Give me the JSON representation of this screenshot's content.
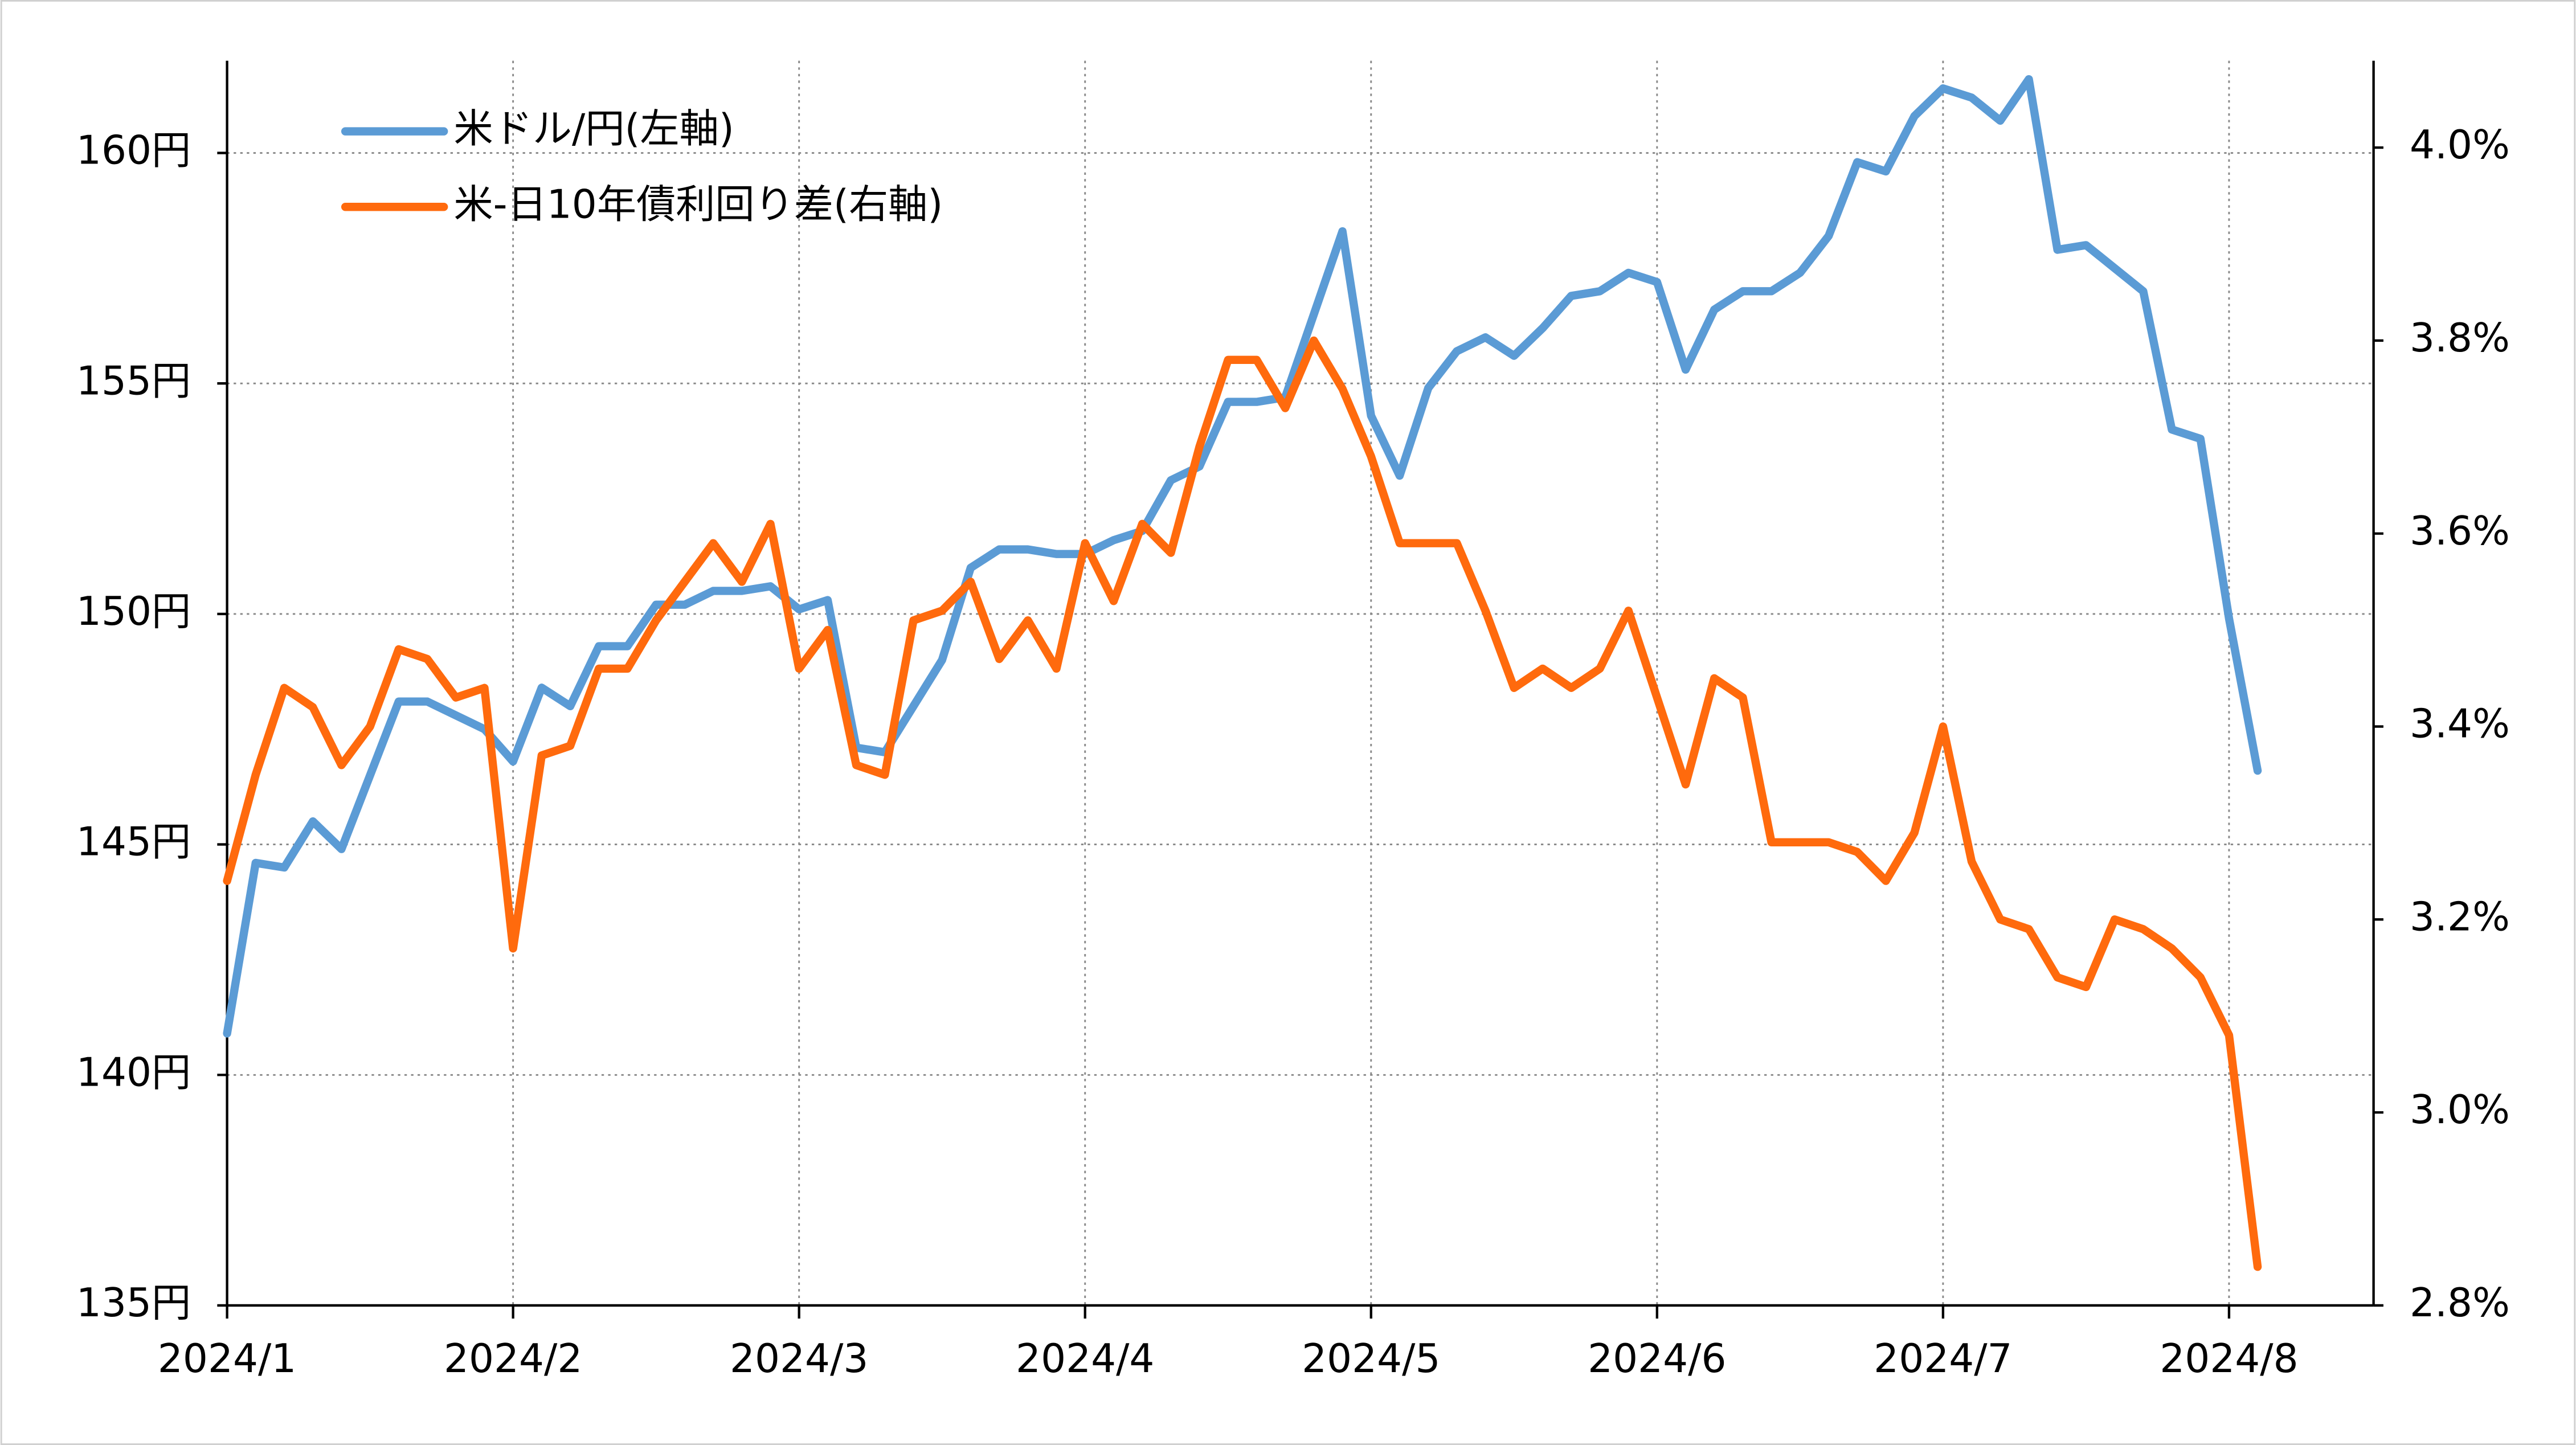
{
  "chart_data": {
    "type": "line",
    "categories": [
      "2024/1",
      null,
      null,
      null,
      null,
      null,
      null,
      null,
      null,
      null,
      "2024/2",
      null,
      null,
      null,
      null,
      null,
      null,
      null,
      null,
      null,
      "2024/3",
      null,
      null,
      null,
      null,
      null,
      null,
      null,
      null,
      null,
      "2024/4",
      null,
      null,
      null,
      null,
      null,
      null,
      null,
      null,
      null,
      "2024/5",
      null,
      null,
      null,
      null,
      null,
      null,
      null,
      null,
      null,
      "2024/6",
      null,
      null,
      null,
      null,
      null,
      null,
      null,
      null,
      null,
      "2024/7",
      null,
      null,
      null,
      null,
      null,
      null,
      null,
      null,
      null,
      "2024/8",
      null
    ],
    "series": [
      {
        "name": "米ドル/円(左軸)",
        "color": "#5b9bd5",
        "axis": "y",
        "values": [
          140.9,
          144.6,
          144.5,
          145.5,
          144.9,
          146.5,
          148.1,
          148.1,
          147.8,
          147.5,
          146.8,
          148.4,
          148.0,
          149.3,
          149.3,
          150.2,
          150.2,
          150.5,
          150.5,
          150.6,
          150.1,
          150.3,
          147.1,
          147.0,
          148.0,
          149.0,
          151.0,
          151.4,
          151.4,
          151.3,
          151.3,
          151.6,
          151.8,
          152.9,
          153.2,
          154.6,
          154.6,
          154.7,
          156.5,
          158.3,
          154.3,
          153.0,
          154.9,
          155.7,
          156.0,
          155.6,
          156.2,
          156.9,
          157.0,
          157.4,
          157.2,
          155.3,
          156.6,
          157.0,
          157.0,
          157.4,
          158.2,
          159.8,
          159.6,
          160.8,
          161.4,
          161.2,
          160.7,
          161.6,
          157.9,
          158.0,
          157.5,
          157.0,
          154.0,
          153.8,
          149.9,
          146.6
        ]
      },
      {
        "name": "米-日10年債利回り差(右軸)",
        "color": "#ff6a0d",
        "axis": "y2",
        "values": [
          3.24,
          3.35,
          3.44,
          3.42,
          3.36,
          3.4,
          3.48,
          3.47,
          3.43,
          3.44,
          3.17,
          3.37,
          3.38,
          3.46,
          3.46,
          3.51,
          3.55,
          3.59,
          3.55,
          3.61,
          3.46,
          3.5,
          3.36,
          3.35,
          3.51,
          3.52,
          3.55,
          3.47,
          3.51,
          3.46,
          3.59,
          3.53,
          3.61,
          3.58,
          3.69,
          3.78,
          3.78,
          3.73,
          3.8,
          3.75,
          3.68,
          3.59,
          3.59,
          3.59,
          3.52,
          3.44,
          3.46,
          3.44,
          3.46,
          3.52,
          3.43,
          3.34,
          3.45,
          3.43,
          3.28,
          3.28,
          3.28,
          3.27,
          3.24,
          3.29,
          3.4,
          3.26,
          3.2,
          3.19,
          3.14,
          3.13,
          3.2,
          3.19,
          3.17,
          3.14,
          3.08,
          2.84
        ]
      }
    ],
    "ylim": [
      135,
      162
    ],
    "yticks": [
      {
        "value": 135,
        "label": "135円"
      },
      {
        "value": 140,
        "label": "140円"
      },
      {
        "value": 145,
        "label": "145円"
      },
      {
        "value": 150,
        "label": "150円"
      },
      {
        "value": 155,
        "label": "155円"
      },
      {
        "value": 160,
        "label": "160円"
      }
    ],
    "y2lim": [
      2.8,
      4.09
    ],
    "y2ticks": [
      {
        "value": 2.8,
        "label": "2.8%"
      },
      {
        "value": 3.0,
        "label": "3.0%"
      },
      {
        "value": 3.2,
        "label": "3.2%"
      },
      {
        "value": 3.4,
        "label": "3.4%"
      },
      {
        "value": 3.6,
        "label": "3.6%"
      },
      {
        "value": 3.8,
        "label": "3.8%"
      },
      {
        "value": 4.0,
        "label": "4.0%"
      }
    ],
    "grid": true,
    "legend": "top-left"
  }
}
